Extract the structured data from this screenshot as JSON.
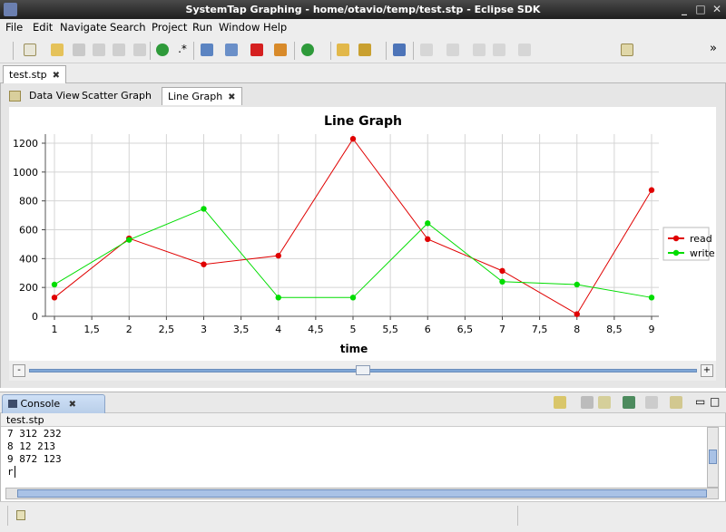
{
  "window": {
    "title": "SystemTap Graphing - home/otavio/temp/test.stp - Eclipse SDK"
  },
  "menu": [
    "File",
    "Edit",
    "Navigate",
    "Search",
    "Project",
    "Run",
    "Window",
    "Help"
  ],
  "toolbar": {
    "overflow_label": "»"
  },
  "editor": {
    "tab_label": "test.stp"
  },
  "views": {
    "tabs": [
      "Data View",
      "Scatter Graph",
      "Line Graph"
    ],
    "active": "Line Graph"
  },
  "chart_data": {
    "type": "line",
    "title": "Line Graph",
    "xlabel": "time",
    "ylabel": "",
    "x": [
      1,
      2,
      3,
      4,
      5,
      6,
      7,
      8,
      9
    ],
    "xticks": [
      "1",
      "1,5",
      "2",
      "2,5",
      "3",
      "3,5",
      "4",
      "4,5",
      "5",
      "5,5",
      "6",
      "6,5",
      "7",
      "7,5",
      "8",
      "8,5",
      "9"
    ],
    "yticks": [
      "0",
      "200",
      "400",
      "600",
      "800",
      "1000",
      "1200"
    ],
    "ylim": [
      0,
      1200
    ],
    "xlim": [
      1,
      9
    ],
    "grid": true,
    "legend": "right",
    "series": [
      {
        "name": "read",
        "color": "#e00000",
        "values": [
          130,
          540,
          360,
          420,
          1230,
          535,
          315,
          15,
          875
        ]
      },
      {
        "name": "write",
        "color": "#00dd00",
        "values": [
          220,
          530,
          745,
          130,
          130,
          645,
          240,
          220,
          130
        ]
      }
    ]
  },
  "slider": {
    "minus": "-",
    "plus": "+",
    "position": 0.5
  },
  "console": {
    "tab_label": "Console",
    "title": "test.stp",
    "lines": [
      "7 312 232",
      "8 12 213",
      "9 872 123",
      "r"
    ]
  }
}
